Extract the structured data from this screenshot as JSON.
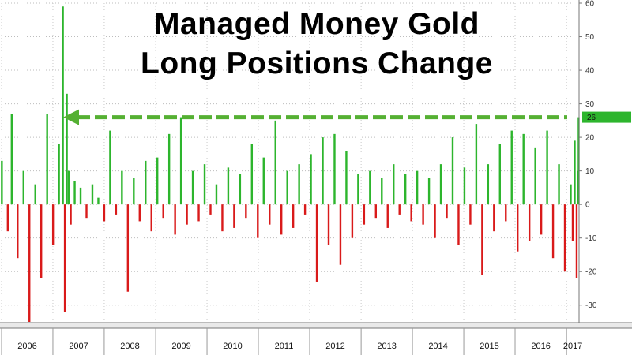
{
  "chart_data": {
    "type": "bar",
    "title_line1": "Managed Money Gold",
    "title_line2": "Long Positions Change",
    "xlabel": "",
    "ylabel": "",
    "ylim": [
      -35,
      60
    ],
    "y_ticks": [
      60,
      50,
      40,
      30,
      20,
      10,
      0,
      -10,
      -20,
      -30
    ],
    "x_tick_labels": [
      "2006",
      "2007",
      "2008",
      "2009",
      "2010",
      "2011",
      "2012",
      "2013",
      "2014",
      "2015",
      "2016",
      "2017"
    ],
    "grid": true,
    "colors": {
      "positive": "#2db52d",
      "negative": "#d91a1a",
      "arrow": "#55b033",
      "badge": "#2db52d"
    },
    "last_value_label": "26",
    "reference_level": 26,
    "x_start": "2006-01-01",
    "x_end": "2017-03-31",
    "dates": [
      "2006-01-03",
      "2006-02-14",
      "2006-03-14",
      "2006-04-25",
      "2006-06-06",
      "2006-07-18",
      "2006-08-29",
      "2006-10-10",
      "2006-11-21",
      "2007-01-02",
      "2007-02-13",
      "2007-03-13",
      "2007-03-27",
      "2007-04-10",
      "2007-04-24",
      "2007-05-08",
      "2007-06-05",
      "2007-07-17",
      "2007-08-28",
      "2007-10-09",
      "2007-11-20",
      "2008-01-01",
      "2008-02-12",
      "2008-03-25",
      "2008-05-06",
      "2008-06-17",
      "2008-07-29",
      "2008-09-09",
      "2008-10-21",
      "2008-12-02",
      "2009-01-13",
      "2009-02-24",
      "2009-04-07",
      "2009-05-19",
      "2009-06-30",
      "2009-08-11",
      "2009-09-22",
      "2009-11-03",
      "2009-12-15",
      "2010-01-26",
      "2010-03-09",
      "2010-04-20",
      "2010-06-01",
      "2010-07-13",
      "2010-08-24",
      "2010-10-05",
      "2010-11-16",
      "2010-12-28",
      "2011-02-08",
      "2011-03-22",
      "2011-05-03",
      "2011-06-14",
      "2011-07-26",
      "2011-09-06",
      "2011-10-18",
      "2011-11-29",
      "2012-01-10",
      "2012-02-21",
      "2012-04-03",
      "2012-05-15",
      "2012-06-26",
      "2012-08-07",
      "2012-09-18",
      "2012-10-30",
      "2012-12-11",
      "2013-01-22",
      "2013-03-05",
      "2013-04-16",
      "2013-05-28",
      "2013-07-09",
      "2013-08-20",
      "2013-10-01",
      "2013-11-12",
      "2013-12-24",
      "2014-02-04",
      "2014-03-18",
      "2014-04-29",
      "2014-06-10",
      "2014-07-22",
      "2014-09-02",
      "2014-10-14",
      "2014-11-25",
      "2015-01-06",
      "2015-02-17",
      "2015-03-31",
      "2015-05-12",
      "2015-06-23",
      "2015-08-04",
      "2015-09-15",
      "2015-10-27",
      "2015-12-08",
      "2016-01-19",
      "2016-03-01",
      "2016-04-12",
      "2016-05-24",
      "2016-07-05",
      "2016-08-16",
      "2016-09-27",
      "2016-11-08",
      "2016-12-20",
      "2017-01-31",
      "2017-02-14",
      "2017-02-28",
      "2017-03-14",
      "2017-03-21",
      "2017-03-28"
    ],
    "values": [
      13,
      -8,
      27,
      -16,
      10,
      -35,
      6,
      -22,
      27,
      -12,
      18,
      59,
      -32,
      33,
      10,
      -6,
      7,
      5,
      -4,
      6,
      2,
      -5,
      22,
      -3,
      10,
      -26,
      8,
      -5,
      13,
      -8,
      14,
      -4,
      21,
      -9,
      26,
      -6,
      10,
      -5,
      12,
      -3,
      6,
      -8,
      11,
      -7,
      9,
      -4,
      18,
      -10,
      14,
      -6,
      25,
      -9,
      10,
      -7,
      12,
      -3,
      15,
      -23,
      20,
      -12,
      21,
      -18,
      16,
      -10,
      9,
      -6,
      10,
      -4,
      8,
      -7,
      12,
      -3,
      9,
      -5,
      10,
      -6,
      8,
      -10,
      12,
      -4,
      20,
      -12,
      11,
      -6,
      24,
      -21,
      12,
      -8,
      18,
      -5,
      22,
      -14,
      21,
      -11,
      17,
      -9,
      22,
      -16,
      12,
      -20,
      6,
      -11,
      19,
      -22,
      10,
      26
    ]
  }
}
